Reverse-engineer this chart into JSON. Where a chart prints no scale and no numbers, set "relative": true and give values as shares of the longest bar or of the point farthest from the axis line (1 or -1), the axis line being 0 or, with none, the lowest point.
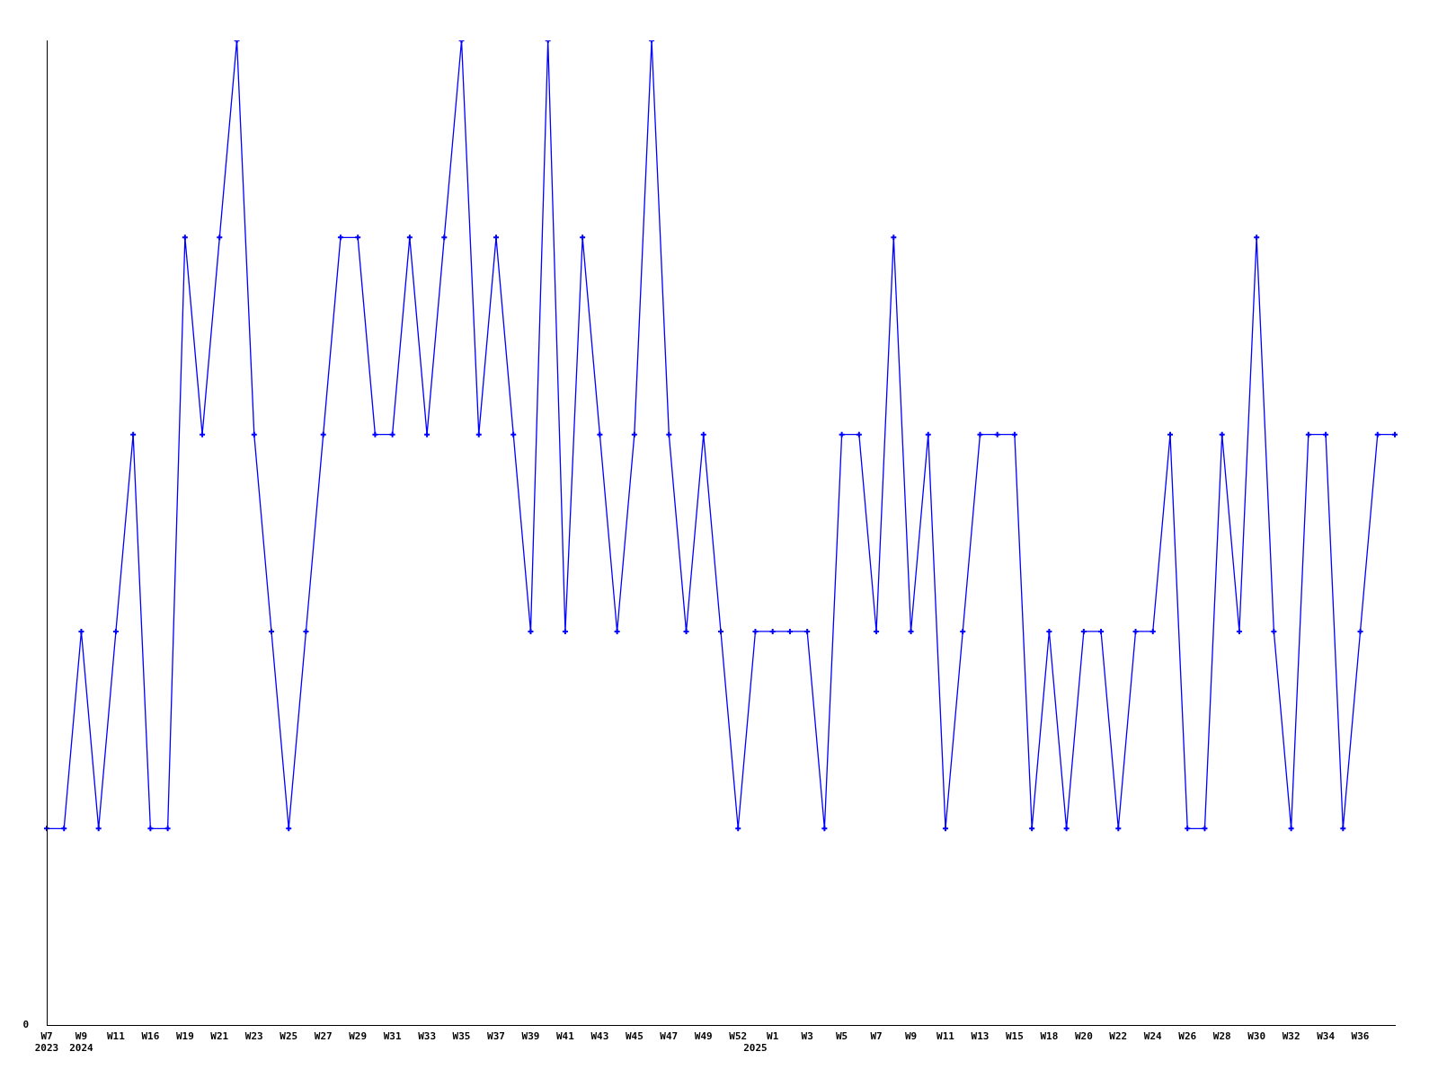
{
  "chart_data": {
    "type": "line",
    "relative": true,
    "color": "#0000ff",
    "marker": "cross",
    "grid": false,
    "legend": false,
    "annotations": [
      "0"
    ],
    "categories": [
      "W7\n2023",
      null,
      "W9\n2024",
      null,
      "W11",
      null,
      "W16",
      null,
      "W19",
      null,
      "W21",
      null,
      "W23",
      null,
      "W25",
      null,
      "W27",
      null,
      "W29",
      null,
      "W31",
      null,
      "W33",
      null,
      "W35",
      null,
      "W37",
      null,
      "W39",
      null,
      "W41",
      null,
      "W43",
      null,
      "W45",
      null,
      "W47",
      null,
      "W49",
      null,
      "W52",
      "\n2025",
      "W1",
      null,
      "W3",
      null,
      "W5",
      null,
      "W7",
      null,
      "W9",
      null,
      "W11",
      null,
      "W13",
      null,
      "W15",
      null,
      "W18",
      null,
      "W20",
      null,
      "W22",
      null,
      "W24",
      null,
      "W26",
      null,
      "W28",
      null,
      "W30",
      null,
      "W32",
      null,
      "W34",
      null,
      "W36",
      null,
      null
    ],
    "values": [
      0.2,
      0.2,
      0.4,
      0.2,
      0.4,
      0.6,
      0.2,
      0.2,
      0.8,
      0.6,
      0.8,
      1,
      0.6,
      0.4,
      0.2,
      0.4,
      0.6,
      0.8,
      0.8,
      0.6,
      0.6,
      0.8,
      0.6,
      0.8,
      1,
      0.6,
      0.8,
      0.6,
      0.4,
      1,
      0.4,
      0.8,
      0.6,
      0.4,
      0.6,
      1,
      0.6,
      0.4,
      0.6,
      0.4,
      0.2,
      0.4,
      0.4,
      0.4,
      0.4,
      0.2,
      0.6,
      0.6,
      0.4,
      0.8,
      0.4,
      0.6,
      0.2,
      0.4,
      0.6,
      0.6,
      0.6,
      0.2,
      0.4,
      0.2,
      0.4,
      0.4,
      0.2,
      0.4,
      0.4,
      0.6,
      0.2,
      0.2,
      0.6,
      0.4,
      0.8,
      0.4,
      0.2,
      0.6,
      0.6,
      0.2,
      0.4,
      0.6,
      0.6
    ]
  }
}
